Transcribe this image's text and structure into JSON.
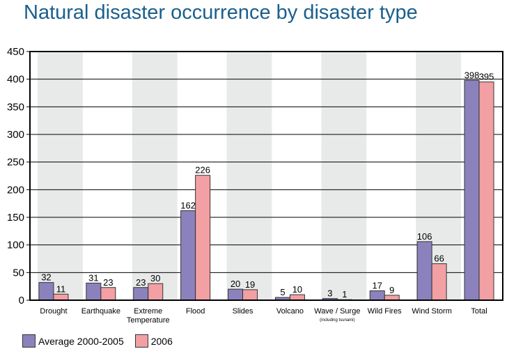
{
  "title": "Natural disaster occurrence by disaster type",
  "colors": {
    "avg": "#8b82bd",
    "y2006": "#f2a0a3",
    "band": "#e8eaea",
    "title": "#1b5f8c"
  },
  "chart_data": {
    "type": "bar",
    "title": "Natural disaster occurrence by disaster type",
    "xlabel": "",
    "ylabel": "",
    "ylim": [
      0,
      450
    ],
    "yticks": [
      "0",
      "50",
      "100",
      "150",
      "200",
      "250",
      "300",
      "350",
      "400",
      "450"
    ],
    "categories": [
      {
        "lines": [
          "Drought"
        ]
      },
      {
        "lines": [
          "Earthquake"
        ]
      },
      {
        "lines": [
          "Extreme",
          "Temperature"
        ]
      },
      {
        "lines": [
          "Flood"
        ]
      },
      {
        "lines": [
          "Slides"
        ]
      },
      {
        "lines": [
          "Volcano"
        ]
      },
      {
        "lines": [
          "Wave / Surge"
        ],
        "sub": "(including tsunami)"
      },
      {
        "lines": [
          "Wild Fires"
        ]
      },
      {
        "lines": [
          "Wind Storm"
        ]
      },
      {
        "lines": [
          "Total"
        ]
      }
    ],
    "series": [
      {
        "name": "Average 2000-2005",
        "values": [
          32,
          31,
          23,
          162,
          20,
          5,
          3,
          17,
          106,
          398
        ]
      },
      {
        "name": "2006",
        "values": [
          11,
          23,
          30,
          226,
          19,
          10,
          1,
          9,
          66,
          395
        ]
      }
    ],
    "legend": "bottom-left",
    "grid": true
  }
}
